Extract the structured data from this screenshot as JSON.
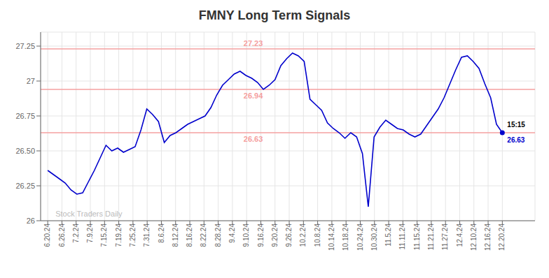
{
  "chart_data": {
    "type": "line",
    "title": "FMNY Long Term Signals",
    "x": [
      0,
      0.4103,
      0.8205,
      1.2308,
      1.641,
      2.0513,
      2.4615,
      2.8718,
      3.2821,
      3.6923,
      4.1026,
      4.5128,
      4.9231,
      5.3333,
      5.7436,
      6.1538,
      6.5641,
      6.9744,
      7.3846,
      7.7949,
      8.2051,
      8.6154,
      9.0256,
      9.4359,
      9.8462,
      10.2564,
      10.6667,
      11.0769,
      11.4872,
      11.8974,
      12.3077,
      12.7179,
      13.1282,
      13.5385,
      13.9487,
      14.359,
      14.7692,
      15.1795,
      15.5897,
      16,
      16.4103,
      16.8205,
      17.2308,
      17.641,
      18.0513,
      18.4615,
      18.8718,
      19.2821,
      19.6923,
      20.1026,
      20.5128,
      20.9231,
      21.3333,
      21.7436,
      22.1538,
      22.5641,
      22.9744,
      23.3846,
      23.7949,
      24.2051,
      24.6154,
      25.0256,
      25.4359,
      25.8462,
      26.2564,
      26.6667,
      27.0769,
      27.4872,
      27.8974,
      28.3077,
      28.7179,
      29.1282,
      29.5385,
      29.9487,
      30.359,
      30.7692,
      31.1795,
      31.5897,
      32
    ],
    "values": [
      26.36,
      26.33,
      26.3,
      26.27,
      26.22,
      26.19,
      26.2,
      26.28,
      26.36,
      26.45,
      26.54,
      26.5,
      26.52,
      26.49,
      26.51,
      26.53,
      26.65,
      26.8,
      26.76,
      26.71,
      26.56,
      26.61,
      26.63,
      26.66,
      26.69,
      26.71,
      26.73,
      26.75,
      26.81,
      26.9,
      26.97,
      27.01,
      27.05,
      27.07,
      27.04,
      27.02,
      26.99,
      26.94,
      26.97,
      27.01,
      27.11,
      27.16,
      27.2,
      27.18,
      27.14,
      26.87,
      26.83,
      26.79,
      26.7,
      26.66,
      26.63,
      26.59,
      26.63,
      26.6,
      26.48,
      26.1,
      26.6,
      26.67,
      26.72,
      26.69,
      26.66,
      26.65,
      26.62,
      26.6,
      26.62,
      26.68,
      26.74,
      26.8,
      26.88,
      26.98,
      27.08,
      27.17,
      27.18,
      27.14,
      27.09,
      26.98,
      26.88,
      26.69,
      26.63
    ],
    "color": "#0000cc",
    "xlim": [
      -0.5,
      34.3
    ],
    "xticks": [
      {
        "value": 0,
        "label": "6.20.24"
      },
      {
        "value": 1,
        "label": "6.26.24"
      },
      {
        "value": 2,
        "label": "7.2.24"
      },
      {
        "value": 3,
        "label": "7.9.24"
      },
      {
        "value": 4,
        "label": "7.15.24"
      },
      {
        "value": 5,
        "label": "7.19.24"
      },
      {
        "value": 6,
        "label": "7.25.24"
      },
      {
        "value": 7,
        "label": "7.31.24"
      },
      {
        "value": 8,
        "label": "8.6.24"
      },
      {
        "value": 9,
        "label": "8.12.24"
      },
      {
        "value": 10,
        "label": "8.16.24"
      },
      {
        "value": 11,
        "label": "8.22.24"
      },
      {
        "value": 12,
        "label": "8.28.24"
      },
      {
        "value": 13,
        "label": "9.4.24"
      },
      {
        "value": 14,
        "label": "9.10.24"
      },
      {
        "value": 15,
        "label": "9.16.24"
      },
      {
        "value": 16,
        "label": "9.20.24"
      },
      {
        "value": 17,
        "label": "9.26.24"
      },
      {
        "value": 18,
        "label": "10.2.24"
      },
      {
        "value": 19,
        "label": "10.8.24"
      },
      {
        "value": 20,
        "label": "10.14.24"
      },
      {
        "value": 21,
        "label": "10.18.24"
      },
      {
        "value": 22,
        "label": "10.24.24"
      },
      {
        "value": 23,
        "label": "10.30.24"
      },
      {
        "value": 24,
        "label": "11.5.24"
      },
      {
        "value": 25,
        "label": "11.11.24"
      },
      {
        "value": 26,
        "label": "11.15.24"
      },
      {
        "value": 27,
        "label": "11.21.24"
      },
      {
        "value": 28,
        "label": "11.27.24"
      },
      {
        "value": 29,
        "label": "12.4.24"
      },
      {
        "value": 30,
        "label": "12.10.24"
      },
      {
        "value": 31,
        "label": "12.16.24"
      },
      {
        "value": 32,
        "label": "12.20.24"
      }
    ],
    "ylim": [
      26.0,
      27.35
    ],
    "yticks": [
      26,
      26.25,
      {
        "value": 26.5,
        "label": "26.50"
      },
      26.75,
      27,
      27.25
    ],
    "grid": true,
    "h_lines": {
      "values": [
        27.23,
        26.94,
        26.63
      ],
      "color": "#f5a0a0"
    },
    "annotations": [
      "15:15",
      "26.63"
    ],
    "watermark": "Stock Traders Daily"
  }
}
